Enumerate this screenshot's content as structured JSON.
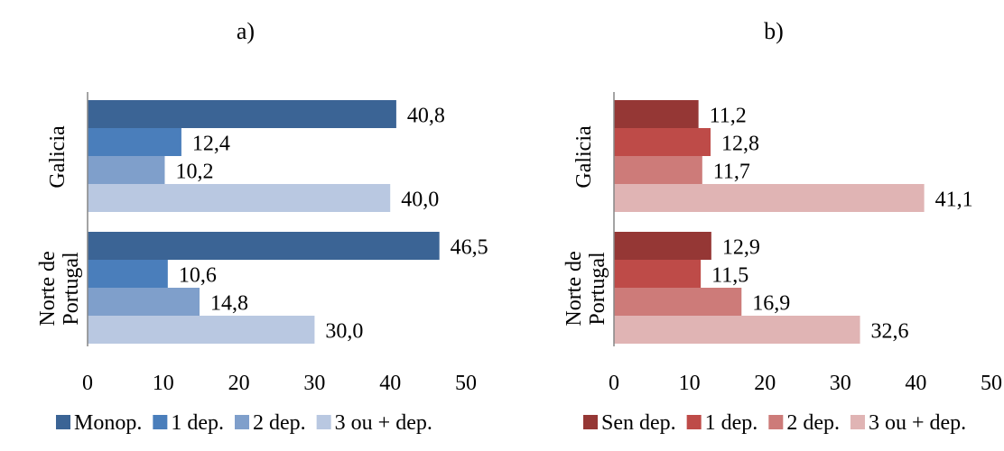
{
  "chart_data": [
    {
      "type": "bar",
      "orientation": "horizontal",
      "panel_label": "a)",
      "categories": [
        "Galicia",
        "Norte de Portugal"
      ],
      "xlim": [
        0,
        50
      ],
      "xticks": [
        "0",
        "10",
        "20",
        "30",
        "40",
        "50"
      ],
      "grid": false,
      "legend_position": "bottom",
      "series": [
        {
          "name": "Monop.",
          "color": "#3b6495",
          "values": [
            40.8,
            46.5
          ],
          "labels": [
            "40,8",
            "46,5"
          ]
        },
        {
          "name": "1 dep.",
          "color": "#4a7ebb",
          "values": [
            12.4,
            10.6
          ],
          "labels": [
            "12,4",
            "10,6"
          ]
        },
        {
          "name": "2 dep.",
          "color": "#7f9fcb",
          "values": [
            10.2,
            14.8
          ],
          "labels": [
            "10,2",
            "14,8"
          ]
        },
        {
          "name": "3 ou + dep.",
          "color": "#b9c8e1",
          "values": [
            40.0,
            30.0
          ],
          "labels": [
            "40,0",
            "30,0"
          ]
        }
      ]
    },
    {
      "type": "bar",
      "orientation": "horizontal",
      "panel_label": "b)",
      "categories": [
        "Galicia",
        "Norte de Portugal"
      ],
      "xlim": [
        0,
        50
      ],
      "xticks": [
        "0",
        "10",
        "20",
        "30",
        "40",
        "50"
      ],
      "grid": false,
      "legend_position": "bottom",
      "series": [
        {
          "name": "Sen dep.",
          "color": "#953735",
          "values": [
            11.2,
            12.9
          ],
          "labels": [
            "11,2",
            "12,9"
          ]
        },
        {
          "name": "1 dep.",
          "color": "#be4b48",
          "values": [
            12.8,
            11.5
          ],
          "labels": [
            "12,8",
            "11,5"
          ]
        },
        {
          "name": "2 dep.",
          "color": "#cd7b79",
          "values": [
            11.7,
            16.9
          ],
          "labels": [
            "11,7",
            "16,9"
          ]
        },
        {
          "name": "3 ou + dep.",
          "color": "#e0b4b4",
          "values": [
            41.1,
            32.6
          ],
          "labels": [
            "41,1",
            "32,6"
          ]
        }
      ]
    }
  ]
}
